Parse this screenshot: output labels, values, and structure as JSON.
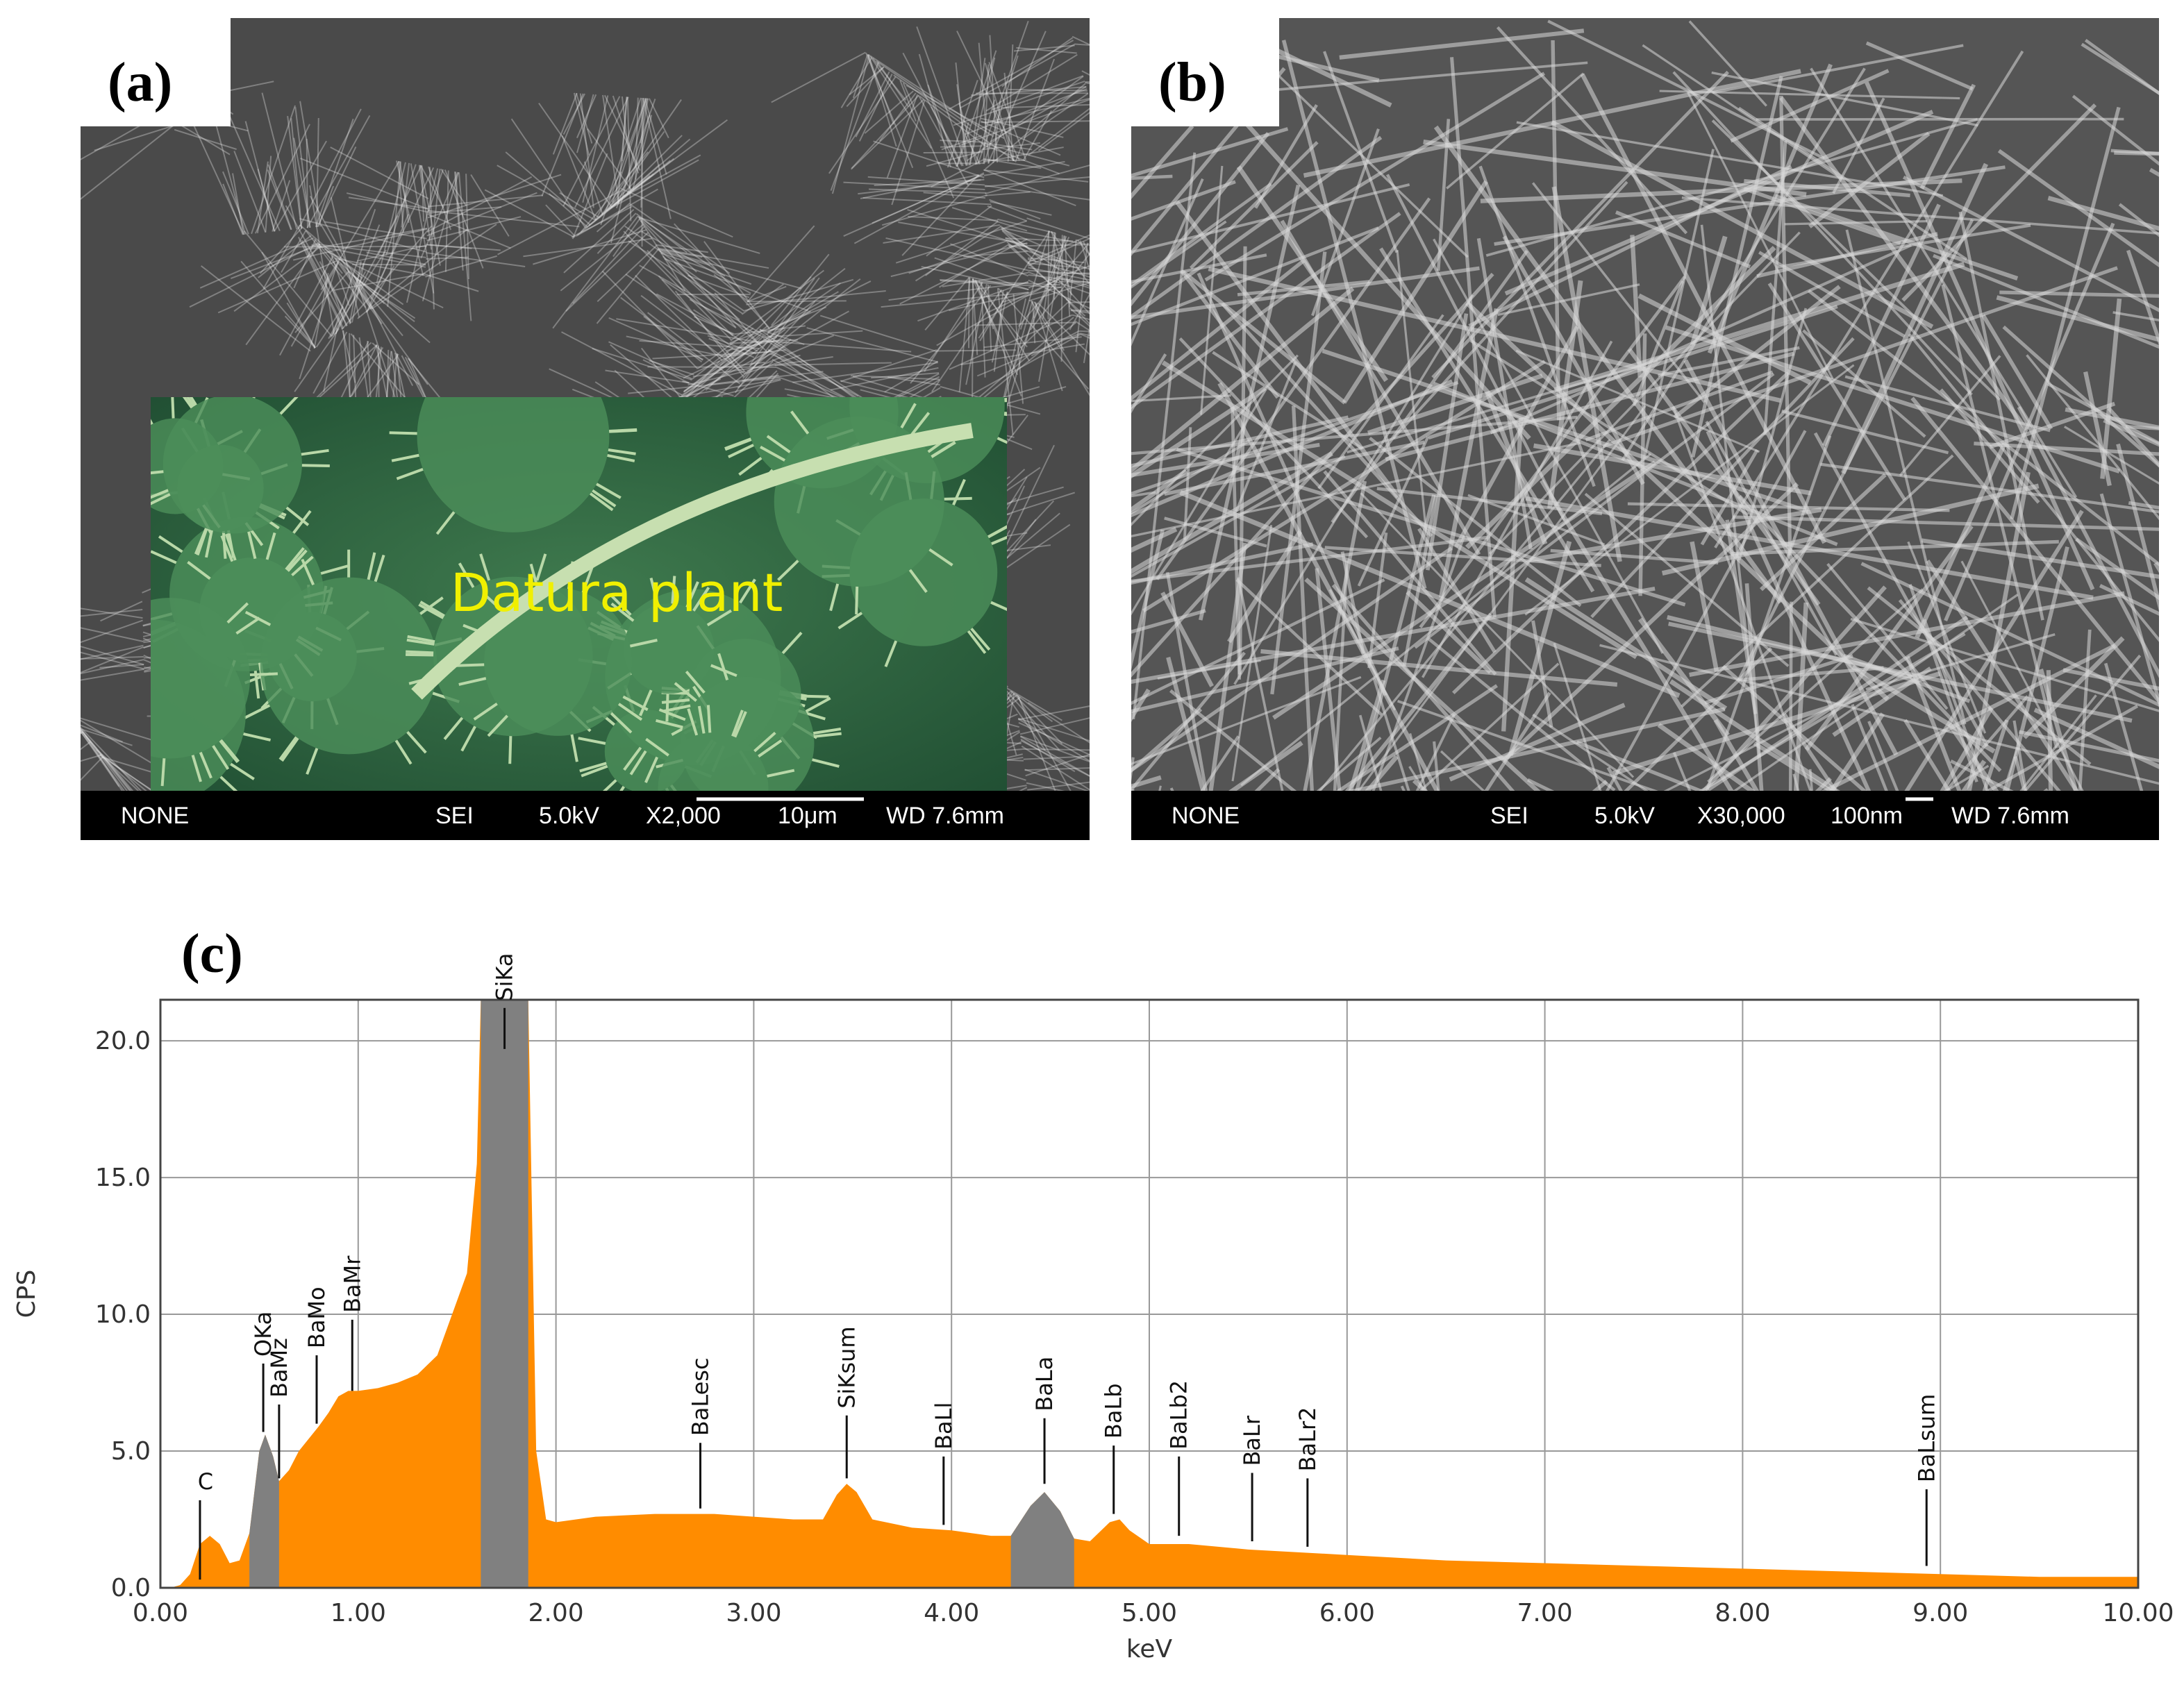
{
  "panels": [
    {
      "label": "(a)",
      "inset_label": "Datura plant",
      "info": [
        "NONE",
        "SEI",
        "5.0kV",
        "X2,000",
        "10μm",
        "WD 7.6mm"
      ]
    },
    {
      "label": "(b)",
      "info": [
        "NONE",
        "SEI",
        "5.0kV",
        "X30,000",
        "100nm",
        "WD 7.6mm"
      ]
    }
  ],
  "chart_data": {
    "type": "area",
    "label": "(c)",
    "xlabel": "keV",
    "ylabel": "CPS",
    "color": "#ff8c00",
    "highlight_color": "#808080",
    "grid": true,
    "x": [
      0,
      0.05,
      0.1,
      0.15,
      0.2,
      0.25,
      0.3,
      0.35,
      0.4,
      0.45,
      0.5,
      0.53,
      0.57,
      0.6,
      0.65,
      0.7,
      0.8,
      0.85,
      0.9,
      0.95,
      1.0,
      1.1,
      1.2,
      1.3,
      1.4,
      1.45,
      1.5,
      1.55,
      1.6,
      1.62,
      1.86,
      1.9,
      1.95,
      2.0,
      2.2,
      2.5,
      2.8,
      3.0,
      3.2,
      3.35,
      3.42,
      3.47,
      3.52,
      3.6,
      3.8,
      4.0,
      4.2,
      4.3,
      4.4,
      4.47,
      4.55,
      4.62,
      4.7,
      4.8,
      4.85,
      4.9,
      5.0,
      5.2,
      5.5,
      6.0,
      6.5,
      7.0,
      7.5,
      8.0,
      8.5,
      9.0,
      9.5,
      10.0
    ],
    "values": [
      0,
      0,
      0.1,
      0.5,
      1.6,
      1.9,
      1.6,
      0.9,
      1.0,
      2.0,
      5.0,
      5.6,
      4.8,
      3.9,
      4.3,
      5.0,
      5.9,
      6.4,
      7.0,
      7.2,
      7.2,
      7.3,
      7.5,
      7.8,
      8.5,
      9.5,
      10.5,
      11.5,
      15.5,
      21.5,
      21.5,
      5.0,
      2.5,
      2.4,
      2.6,
      2.7,
      2.7,
      2.6,
      2.5,
      2.5,
      3.4,
      3.8,
      3.5,
      2.5,
      2.2,
      2.1,
      1.9,
      1.9,
      3.0,
      3.5,
      2.8,
      1.8,
      1.7,
      2.4,
      2.5,
      2.1,
      1.6,
      1.6,
      1.4,
      1.2,
      1.0,
      0.9,
      0.8,
      0.7,
      0.6,
      0.5,
      0.4,
      0.4
    ],
    "highlights": [
      [
        0.45,
        0.6
      ],
      [
        1.62,
        1.86
      ],
      [
        4.3,
        4.62
      ]
    ],
    "xlim": [
      0,
      10
    ],
    "ylim": [
      0,
      21.5
    ],
    "xticks": [
      {
        "value": 0,
        "label": "0.00"
      },
      {
        "value": 1,
        "label": "1.00"
      },
      {
        "value": 2,
        "label": "2.00"
      },
      {
        "value": 3,
        "label": "3.00"
      },
      {
        "value": 4,
        "label": "4.00"
      },
      {
        "value": 5,
        "label": "5.00"
      },
      {
        "value": 6,
        "label": "6.00"
      },
      {
        "value": 7,
        "label": "7.00"
      },
      {
        "value": 8,
        "label": "8.00"
      },
      {
        "value": 9,
        "label": "9.00"
      },
      {
        "value": 10,
        "label": "10.00"
      }
    ],
    "yticks": [
      {
        "value": 0,
        "label": "0.0"
      },
      {
        "value": 5,
        "label": "5.0"
      },
      {
        "value": 10,
        "label": "10.0"
      },
      {
        "value": 15,
        "label": "15.0"
      },
      {
        "value": 20,
        "label": "20.0"
      }
    ],
    "annotations": [
      {
        "text": "C",
        "x": 0.2,
        "y": 3.2,
        "y0": 0.3,
        "horizontal": true
      },
      {
        "text": "OKa",
        "x": 0.52,
        "y": 8.2,
        "y0": 5.7
      },
      {
        "text": "BaMz",
        "x": 0.6,
        "y": 6.7,
        "y0": 4.0
      },
      {
        "text": "BaMo",
        "x": 0.79,
        "y": 8.5,
        "y0": 6.0
      },
      {
        "text": "BaMr",
        "x": 0.97,
        "y": 9.8,
        "y0": 7.2
      },
      {
        "text": "SiKa",
        "x": 1.74,
        "y": 21.2,
        "y0": 19.7
      },
      {
        "text": "BaLesc",
        "x": 2.73,
        "y": 5.3,
        "y0": 2.9
      },
      {
        "text": "SiKsum",
        "x": 3.47,
        "y": 6.3,
        "y0": 4.0
      },
      {
        "text": "BaLl",
        "x": 3.96,
        "y": 4.8,
        "y0": 2.3
      },
      {
        "text": "BaLa",
        "x": 4.47,
        "y": 6.2,
        "y0": 3.8
      },
      {
        "text": "BaLb",
        "x": 4.82,
        "y": 5.2,
        "y0": 2.7
      },
      {
        "text": "BaLb2",
        "x": 5.15,
        "y": 4.8,
        "y0": 1.9
      },
      {
        "text": "BaLr",
        "x": 5.52,
        "y": 4.2,
        "y0": 1.7
      },
      {
        "text": "BaLr2",
        "x": 5.8,
        "y": 4.0,
        "y0": 1.5
      },
      {
        "text": "BaLsum",
        "x": 8.93,
        "y": 3.6,
        "y0": 0.8
      }
    ]
  }
}
